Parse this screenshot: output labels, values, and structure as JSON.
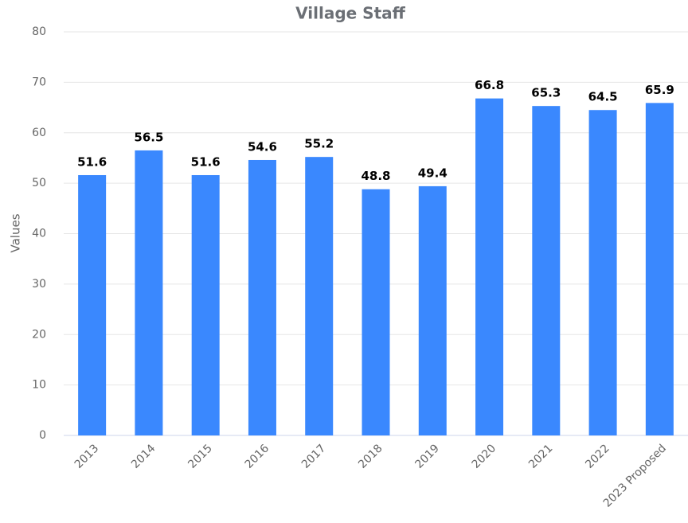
{
  "chart_data": {
    "type": "bar",
    "title": "Village Staff",
    "y_label": "Values",
    "categories": [
      "2013",
      "2014",
      "2015",
      "2016",
      "2017",
      "2018",
      "2019",
      "2020",
      "2021",
      "2022",
      "2023 Proposed"
    ],
    "values": [
      51.6,
      56.5,
      51.6,
      54.6,
      55.2,
      48.8,
      49.4,
      66.8,
      65.3,
      64.5,
      65.9
    ],
    "color": "#3a88fe",
    "ylim": [
      0,
      80
    ],
    "yticks": [
      0,
      10,
      20,
      30,
      40,
      50,
      60,
      70,
      80
    ],
    "grid": true
  }
}
